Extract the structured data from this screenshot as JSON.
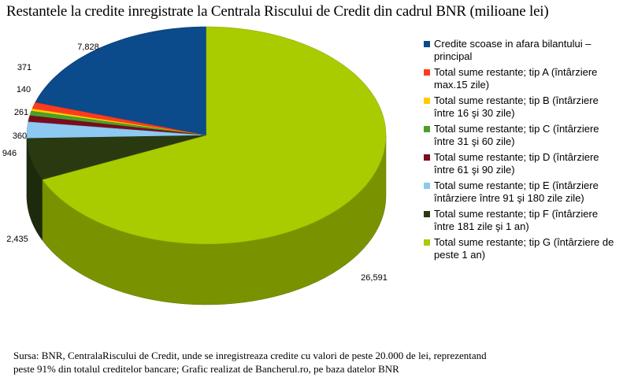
{
  "title": "Restantele la credite inregistrate la Centrala Riscului de Credit  din cadrul BNR (milioane lei)",
  "source": {
    "line1": "Sursa: BNR, CentralaRiscului de Credit,   unde se inregistreaza credite cu valori de peste 20.000 de lei, reprezentand",
    "line2": "peste 91% din totalul creditelor bancare; Grafic realizat de Bancherul.ro, pe baza datelor BNR"
  },
  "chart_data": {
    "type": "pie",
    "title": "Restantele la credite inregistrate la Centrala Riscului de Credit  din cadrul BNR (milioane lei)",
    "legend_position": "right",
    "slices": [
      {
        "label": "Credite scoase in afara bilantului – principal",
        "value": 7828,
        "value_label": "7,828",
        "color": "#0b4a8b"
      },
      {
        "label": "Total sume restante; tip A (întârziere max.15 zile)",
        "value": 371,
        "value_label": "371",
        "color": "#ff3b1f"
      },
      {
        "label": "Total sume restante; tip B (întârziere între 16 şi 30 zile)",
        "value": 140,
        "value_label": "140",
        "color": "#ffcc00"
      },
      {
        "label": "Total sume restante; tip C (întârziere între 31 şi 60 zile)",
        "value": 261,
        "value_label": "261",
        "color": "#4aa02c"
      },
      {
        "label": "Total sume restante; tip D (întârziere între 61 şi 90 zile)",
        "value": 360,
        "value_label": "360",
        "color": "#7a0c1c"
      },
      {
        "label": "Total sume restante; tip E (întârziere întârziere între 91 şi 180 zile zile)",
        "value": 946,
        "value_label": "946",
        "color": "#8ec9f2"
      },
      {
        "label": "Total sume restante; tip F (întârziere între 181 zile şi 1 an)",
        "value": 2435,
        "value_label": "2,435",
        "color": "#2a3a10"
      },
      {
        "label": "Total sume restante; tip G (întârziere de peste 1 an)",
        "value": 26591,
        "value_label": "26,591",
        "color": "#a8cc00"
      }
    ]
  }
}
